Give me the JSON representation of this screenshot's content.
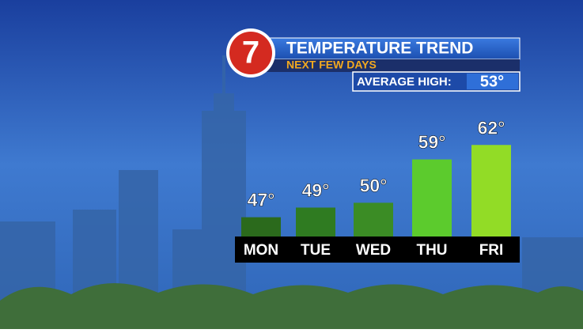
{
  "chart_data": {
    "type": "bar",
    "title": "TEMPERATURE TREND",
    "subtitle": "NEXT FEW DAYS",
    "logo": "7",
    "average_high_label": "AVERAGE HIGH:",
    "average_high": "53°",
    "categories": [
      "MON",
      "TUE",
      "WED",
      "THU",
      "FRI"
    ],
    "values": [
      47,
      49,
      50,
      59,
      62
    ],
    "value_labels": [
      "47°",
      "49°",
      "50°",
      "59°",
      "62°"
    ],
    "colors": [
      "#2b6a1c",
      "#2f7b21",
      "#3b8c25",
      "#5ccb2d",
      "#92dc26"
    ],
    "ylim": [
      43,
      65
    ]
  }
}
